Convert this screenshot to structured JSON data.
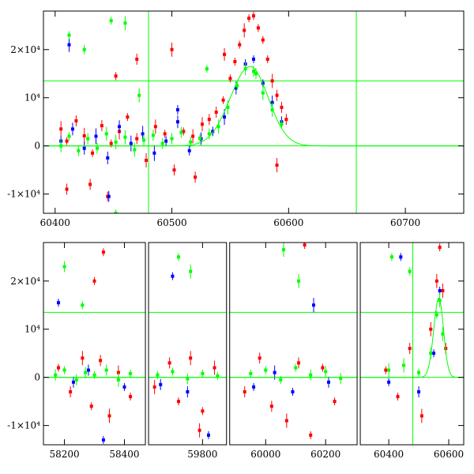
{
  "colors": {
    "red": "#ff0000",
    "blue": "#0000ff",
    "green": "#00ff00",
    "axis": "#000000",
    "fit": "#00ff00"
  },
  "chart_data": [
    {
      "type": "scatter",
      "title": "",
      "xlabel": "",
      "ylabel": "",
      "xlim": [
        60390,
        60750
      ],
      "ylim": [
        -14000,
        28000
      ],
      "xticks": [
        60400,
        60500,
        60600,
        60700
      ],
      "yticks": [
        {
          "value": -10000,
          "label": "-1×10⁴"
        },
        {
          "value": 0,
          "label": "0"
        },
        {
          "value": 10000,
          "label": "10⁴"
        },
        {
          "value": 20000,
          "label": "2×10⁴"
        }
      ],
      "hlines": [
        13500,
        0
      ],
      "vlines": [
        60480,
        60658
      ],
      "fit_curve": {
        "peak_x": 60567,
        "peak_y": 16500,
        "rise_width": 24,
        "decay_width": 22
      },
      "series": [
        {
          "color": "red",
          "points": [
            [
              60405,
              3500
            ],
            [
              60410,
              1000
            ],
            [
              60418,
              5200
            ],
            [
              60425,
              2100
            ],
            [
              60432,
              -1500
            ],
            [
              60440,
              4200
            ],
            [
              60448,
              500
            ],
            [
              60455,
              3000
            ],
            [
              60462,
              6000
            ],
            [
              60470,
              1500
            ],
            [
              60478,
              -3000
            ],
            [
              60486,
              4000
            ],
            [
              60494,
              2500
            ],
            [
              60502,
              -5000
            ],
            [
              60510,
              3000
            ],
            [
              60518,
              2000
            ],
            [
              60526,
              4500
            ],
            [
              60532,
              5500
            ],
            [
              60538,
              7000
            ],
            [
              60544,
              9500
            ],
            [
              60550,
              14000
            ],
            [
              60554,
              17500
            ],
            [
              60558,
              21000
            ],
            [
              60562,
              24000
            ],
            [
              60566,
              26500
            ],
            [
              60570,
              27000
            ],
            [
              60574,
              24500
            ],
            [
              60578,
              22000
            ],
            [
              60582,
              18000
            ],
            [
              60586,
              13500
            ],
            [
              60590,
              10500
            ],
            [
              60594,
              8000
            ],
            [
              60598,
              5500
            ],
            [
              60410,
              -9000
            ],
            [
              60430,
              -8000
            ],
            [
              60452,
              14500
            ],
            [
              60470,
              18000
            ],
            [
              60500,
              20000
            ],
            [
              60520,
              -6500
            ],
            [
              60590,
              -4000
            ],
            [
              60545,
              19000
            ],
            [
              60445,
              -10500
            ]
          ]
        },
        {
          "color": "blue",
          "points": [
            [
              60405,
              1000
            ],
            [
              60415,
              3500
            ],
            [
              60425,
              -500
            ],
            [
              60435,
              2000
            ],
            [
              60445,
              -2500
            ],
            [
              60455,
              4000
            ],
            [
              60465,
              500
            ],
            [
              60475,
              2500
            ],
            [
              60485,
              -1500
            ],
            [
              60495,
              1000
            ],
            [
              60505,
              5000
            ],
            [
              60515,
              -1000
            ],
            [
              60525,
              1500
            ],
            [
              60535,
              3000
            ],
            [
              60545,
              6000
            ],
            [
              60555,
              12000
            ],
            [
              60563,
              17000
            ],
            [
              60570,
              18000
            ],
            [
              60578,
              13000
            ],
            [
              60586,
              9000
            ],
            [
              60594,
              5000
            ],
            [
              60412,
              21000
            ],
            [
              60446,
              -10500
            ],
            [
              60505,
              7500
            ]
          ]
        },
        {
          "color": "green",
          "points": [
            [
              60405,
              0
            ],
            [
              60412,
              2000
            ],
            [
              60420,
              -1000
            ],
            [
              60428,
              1500
            ],
            [
              60436,
              -500
            ],
            [
              60444,
              2500
            ],
            [
              60452,
              800
            ],
            [
              60460,
              1800
            ],
            [
              60468,
              -800
            ],
            [
              60476,
              1200
            ],
            [
              60484,
              2200
            ],
            [
              60492,
              500
            ],
            [
              60500,
              1500
            ],
            [
              60508,
              2800
            ],
            [
              60516,
              800
            ],
            [
              60524,
              1600
            ],
            [
              60532,
              2500
            ],
            [
              60540,
              4000
            ],
            [
              60548,
              8000
            ],
            [
              60556,
              12500
            ],
            [
              60563,
              16000
            ],
            [
              60570,
              15500
            ],
            [
              60578,
              11000
            ],
            [
              60586,
              7500
            ],
            [
              60594,
              4500
            ],
            [
              60412,
              23000
            ],
            [
              60425,
              20000
            ],
            [
              60448,
              26000
            ],
            [
              60460,
              25500
            ],
            [
              60472,
              10500
            ],
            [
              60530,
              16000
            ],
            [
              60572,
              15000
            ],
            [
              60452,
              -14000
            ]
          ]
        }
      ]
    },
    {
      "type": "scatter",
      "title": "",
      "xlabel": "",
      "ylabel": "",
      "ylim": [
        -14000,
        28000
      ],
      "segments": [
        {
          "xlim": [
            58130,
            58470
          ],
          "xticks": [
            58200,
            58400
          ]
        },
        {
          "xlim": [
            59620,
            59880
          ],
          "xticks": [
            59800
          ]
        },
        {
          "xlim": [
            59880,
            60305
          ],
          "xticks": [
            60000,
            60200
          ]
        },
        {
          "xlim": [
            60305,
            60650
          ],
          "xticks": [
            60400,
            60600
          ]
        }
      ],
      "yticks": [
        {
          "value": -10000,
          "label": "-1×10⁴"
        },
        {
          "value": 0,
          "label": "0"
        },
        {
          "value": 10000,
          "label": "10⁴"
        },
        {
          "value": 20000,
          "label": "2×10⁴"
        }
      ],
      "hlines": [
        13500,
        0
      ],
      "vlines": [
        60480
      ],
      "fit_curve": {
        "peak_x": 60567,
        "peak_y": 16500,
        "rise_width": 24,
        "decay_width": 22
      },
      "series": [
        {
          "color": "red",
          "points": [
            [
              58180,
              2000
            ],
            [
              58220,
              -3000
            ],
            [
              58260,
              4000
            ],
            [
              58290,
              -6000
            ],
            [
              58320,
              3500
            ],
            [
              58350,
              -8000
            ],
            [
              58380,
              1000
            ],
            [
              58420,
              -4000
            ],
            [
              58300,
              20000
            ],
            [
              58330,
              26000
            ],
            [
              59640,
              -2000
            ],
            [
              59690,
              3000
            ],
            [
              59720,
              -5000
            ],
            [
              59760,
              4000
            ],
            [
              59800,
              -7000
            ],
            [
              59840,
              2000
            ],
            [
              59790,
              -11000
            ],
            [
              59930,
              -3000
            ],
            [
              59980,
              4000
            ],
            [
              60020,
              -6000
            ],
            [
              60070,
              -9000
            ],
            [
              60110,
              3000
            ],
            [
              60150,
              -12000
            ],
            [
              60190,
              2000
            ],
            [
              60230,
              -5000
            ],
            [
              60130,
              27500
            ],
            [
              60390,
              1500
            ],
            [
              60430,
              -4000
            ],
            [
              60470,
              6000
            ],
            [
              60510,
              -8000
            ],
            [
              60540,
              10000
            ],
            [
              60560,
              20000
            ],
            [
              60570,
              27000
            ],
            [
              60580,
              18000
            ],
            [
              60590,
              6000
            ]
          ]
        },
        {
          "color": "blue",
          "points": [
            [
              58180,
              15500
            ],
            [
              58230,
              -1000
            ],
            [
              58280,
              1500
            ],
            [
              58330,
              -13000
            ],
            [
              58400,
              -2000
            ],
            [
              59660,
              -1500
            ],
            [
              59700,
              21000
            ],
            [
              59750,
              -3000
            ],
            [
              59820,
              -12000
            ],
            [
              59960,
              -2000
            ],
            [
              60030,
              1000
            ],
            [
              60090,
              -3000
            ],
            [
              60160,
              15000
            ],
            [
              60210,
              -1000
            ],
            [
              60400,
              -1000
            ],
            [
              60440,
              25000
            ],
            [
              60500,
              -3000
            ],
            [
              60550,
              5000
            ],
            [
              60570,
              18000
            ]
          ]
        },
        {
          "color": "green",
          "points": [
            [
              58170,
              500
            ],
            [
              58200,
              1500
            ],
            [
              58240,
              -500
            ],
            [
              58270,
              1000
            ],
            [
              58300,
              500
            ],
            [
              58340,
              1500
            ],
            [
              58380,
              -500
            ],
            [
              58420,
              800
            ],
            [
              58260,
              15000
            ],
            [
              58200,
              23000
            ],
            [
              59650,
              500
            ],
            [
              59700,
              1200
            ],
            [
              59750,
              -300
            ],
            [
              59800,
              800
            ],
            [
              59850,
              300
            ],
            [
              59720,
              25000
            ],
            [
              59760,
              22000
            ],
            [
              59950,
              800
            ],
            [
              60000,
              1500
            ],
            [
              60050,
              -500
            ],
            [
              60100,
              2000
            ],
            [
              60150,
              500
            ],
            [
              60200,
              1200
            ],
            [
              60250,
              -200
            ],
            [
              60060,
              26500
            ],
            [
              60110,
              20000
            ],
            [
              60400,
              1500
            ],
            [
              60450,
              2500
            ],
            [
              60500,
              1000
            ],
            [
              60540,
              5000
            ],
            [
              60560,
              13000
            ],
            [
              60570,
              16000
            ],
            [
              60580,
              9000
            ],
            [
              60410,
              25000
            ],
            [
              60470,
              22000
            ]
          ]
        }
      ]
    }
  ]
}
